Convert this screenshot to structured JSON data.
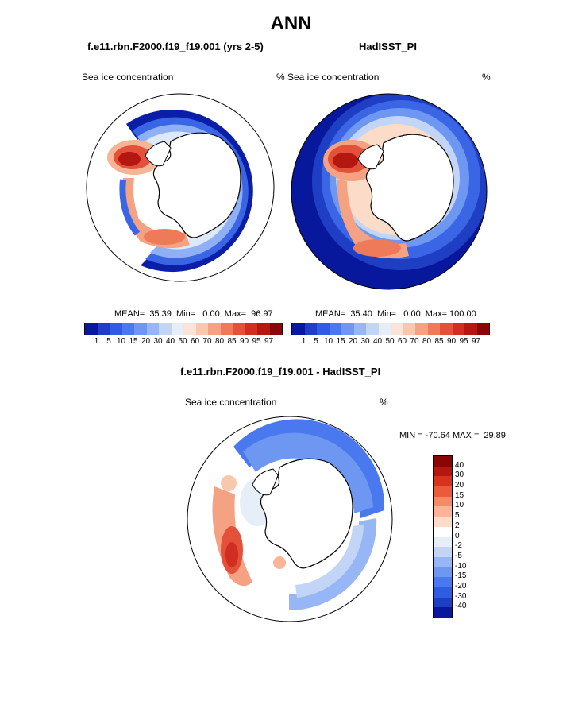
{
  "title": "ANN",
  "panel1": {
    "case": "f.e11.rbn.F2000.f19_f19.001 (yrs 2-5)",
    "var_label": "Sea ice concentration",
    "units": "%",
    "stats": "MEAN=  35.39  Min=   0.00  Max=  96.97"
  },
  "panel2": {
    "case": "HadISST_PI",
    "var_label": "Sea ice concentration",
    "units": "%",
    "stats": "MEAN=  35.40  Min=   0.00  Max= 100.00"
  },
  "diff": {
    "case": "f.e11.rbn.F2000.f19_f19.001 - HadISST_PI",
    "var_label": "Sea ice concentration",
    "units": "%",
    "stats": "MIN = -70.64 MAX =  29.89"
  },
  "colorbar_abs": {
    "ticks": [
      "1",
      "5",
      "10",
      "15",
      "20",
      "30",
      "40",
      "50",
      "60",
      "70",
      "80",
      "85",
      "90",
      "95",
      "97"
    ],
    "colors": [
      "#08189c",
      "#1e3fc4",
      "#2f5ce0",
      "#4a78ee",
      "#6e97f2",
      "#97b6f5",
      "#c2d5f7",
      "#e6eef8",
      "#fbe4d6",
      "#f9c7ab",
      "#f5a282",
      "#ef7a5a",
      "#e4513a",
      "#cf2e20",
      "#b41610",
      "#8a0606"
    ]
  },
  "colorbar_diff": {
    "ticks": [
      "40",
      "30",
      "20",
      "15",
      "10",
      "5",
      "2",
      "0",
      "-2",
      "-5",
      "-10",
      "-15",
      "-20",
      "-30",
      "-40"
    ],
    "colors": [
      "#8a0606",
      "#b41610",
      "#d6331f",
      "#ec5a3a",
      "#f58a66",
      "#f9b597",
      "#fbdcc8",
      "#ffffff",
      "#e6eef8",
      "#c2d5f7",
      "#97b6f5",
      "#6e97f2",
      "#4a78ee",
      "#2f5ce0",
      "#1e3fc4",
      "#08189c"
    ]
  }
}
